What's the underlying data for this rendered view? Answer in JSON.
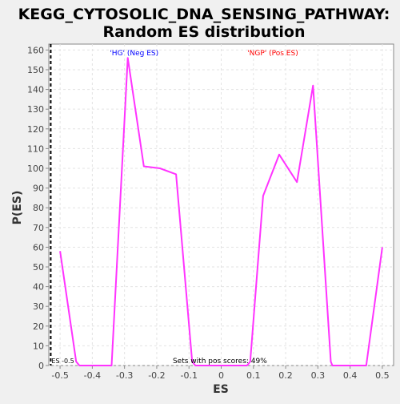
{
  "chart_data": {
    "type": "line",
    "title_line1": "KEGG_CYTOSOLIC_DNA_SENSING_PATHWAY:",
    "title_line2": "Random ES distribution",
    "xlabel": "ES",
    "ylabel": "P(ES)",
    "xlim": [
      -0.535,
      0.535
    ],
    "ylim": [
      0,
      163
    ],
    "x_ticks": [
      -0.5,
      -0.4,
      -0.3,
      -0.2,
      -0.1,
      0,
      0.1,
      0.2,
      0.3,
      0.4,
      0.5
    ],
    "x_tick_labels": [
      "-0.5",
      "-0.4",
      "-0.3",
      "-0.2",
      "-0.1",
      "0",
      "0.1",
      "0.2",
      "0.3",
      "0.4",
      "0.5"
    ],
    "y_ticks": [
      0,
      10,
      20,
      30,
      40,
      50,
      60,
      70,
      80,
      90,
      100,
      110,
      120,
      130,
      140,
      150,
      160
    ],
    "grid": true,
    "series": [
      {
        "color": "#ff33ff",
        "x": [
          -0.5,
          -0.45,
          -0.44,
          -0.34,
          -0.29,
          -0.24,
          -0.19,
          -0.14,
          -0.09,
          -0.08,
          0.08,
          0.09,
          0.13,
          0.18,
          0.235,
          0.285,
          0.34,
          0.345,
          0.45,
          0.5
        ],
        "y": [
          58,
          2,
          0,
          0,
          156,
          101,
          100,
          97,
          2,
          0,
          0,
          2,
          86,
          107,
          93,
          142,
          2,
          0,
          0,
          60
        ]
      }
    ],
    "vline": {
      "x": -0.529,
      "label": "ES -0.5",
      "color": "#000000",
      "style": "dashed"
    },
    "annotations": {
      "neg_label": "'HG' (Neg ES)",
      "neg_color": "#0000ff",
      "pos_label": "'NGP' (Pos ES)",
      "pos_color": "#ff0000",
      "footer": "Sets with pos scores: 49%"
    }
  }
}
